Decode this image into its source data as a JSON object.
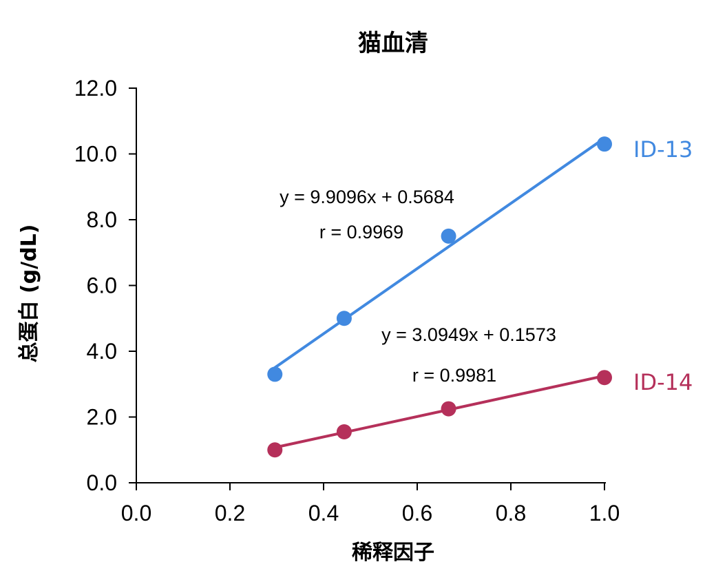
{
  "chart_data": {
    "type": "scatter",
    "title": "猫血清",
    "xlabel": "稀释因子",
    "ylabel": "总蛋白 (g/dL)",
    "xlim": [
      0.0,
      1.0
    ],
    "ylim": [
      0.0,
      12.0
    ],
    "x_ticks": [
      "0.0",
      "0.2",
      "0.4",
      "0.6",
      "0.8",
      "1.0"
    ],
    "y_ticks": [
      "0.0",
      "2.0",
      "4.0",
      "6.0",
      "8.0",
      "10.0",
      "12.0"
    ],
    "grid": false,
    "legend": "none",
    "series": [
      {
        "name": "ID-13",
        "color": "#4189e0",
        "x": [
          0.296,
          0.444,
          0.667,
          1.0
        ],
        "y": [
          3.3,
          5.0,
          7.5,
          10.3
        ],
        "trendline": {
          "slope": 9.9096,
          "intercept": 0.5684
        },
        "equation": "y = 9.9096x + 0.5684",
        "r_text": "r = 0.9969"
      },
      {
        "name": "ID-14",
        "color": "#b5305a",
        "x": [
          0.296,
          0.444,
          0.667,
          1.0
        ],
        "y": [
          1.0,
          1.55,
          2.25,
          3.2
        ],
        "trendline": {
          "slope": 3.0949,
          "intercept": 0.1573
        },
        "equation": "y = 3.0949x + 0.1573",
        "r_text": "r = 0.9981"
      }
    ]
  }
}
